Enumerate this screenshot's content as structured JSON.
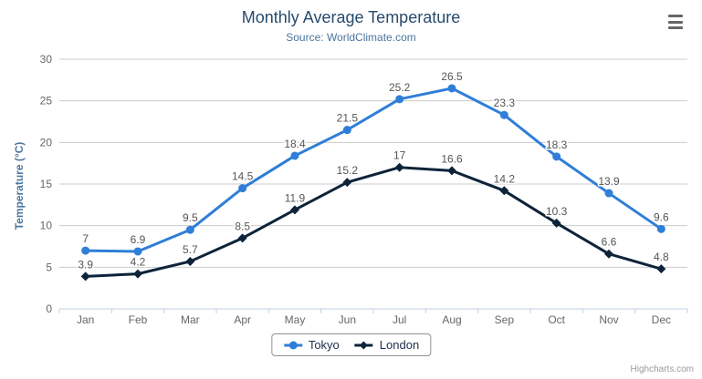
{
  "chart": {
    "title": "Monthly Average Temperature",
    "subtitle": "Source: WorldClimate.com",
    "yaxis_title": "Temperature (°C)",
    "credits": "Highcharts.com"
  },
  "chart_data": {
    "type": "line",
    "title": "Monthly Average Temperature",
    "subtitle": "Source: WorldClimate.com",
    "categories": [
      "Jan",
      "Feb",
      "Mar",
      "Apr",
      "May",
      "Jun",
      "Jul",
      "Aug",
      "Sep",
      "Oct",
      "Nov",
      "Dec"
    ],
    "series": [
      {
        "name": "Tokyo",
        "color": "#2f7ed8",
        "marker": "circle",
        "values": [
          7,
          6.9,
          9.5,
          14.5,
          18.4,
          21.5,
          25.2,
          26.5,
          23.3,
          18.3,
          13.9,
          9.6
        ]
      },
      {
        "name": "London",
        "color": "#0d233a",
        "marker": "diamond",
        "values": [
          3.9,
          4.2,
          5.7,
          8.5,
          11.9,
          15.2,
          17,
          16.6,
          14.2,
          10.3,
          6.6,
          4.8
        ]
      }
    ],
    "xlabel": "",
    "ylabel": "Temperature (°C)",
    "ylim": [
      0,
      30
    ],
    "yticks": [
      0,
      5,
      10,
      15,
      20,
      25,
      30
    ],
    "grid": true,
    "data_labels": true,
    "legend_position": "bottom-center"
  },
  "colors": {
    "title": "#274b6d",
    "subtitle": "#4d759e",
    "axis_label": "#666666",
    "grid_line": "#cccccc",
    "axis_line": "#c0d0e0",
    "data_label": "#555555",
    "legend_text": "#20314d",
    "legend_border": "#909090",
    "credits": "#999999",
    "menu_icon": "#666666"
  },
  "icons": {
    "context_menu": "hamburger-icon"
  }
}
